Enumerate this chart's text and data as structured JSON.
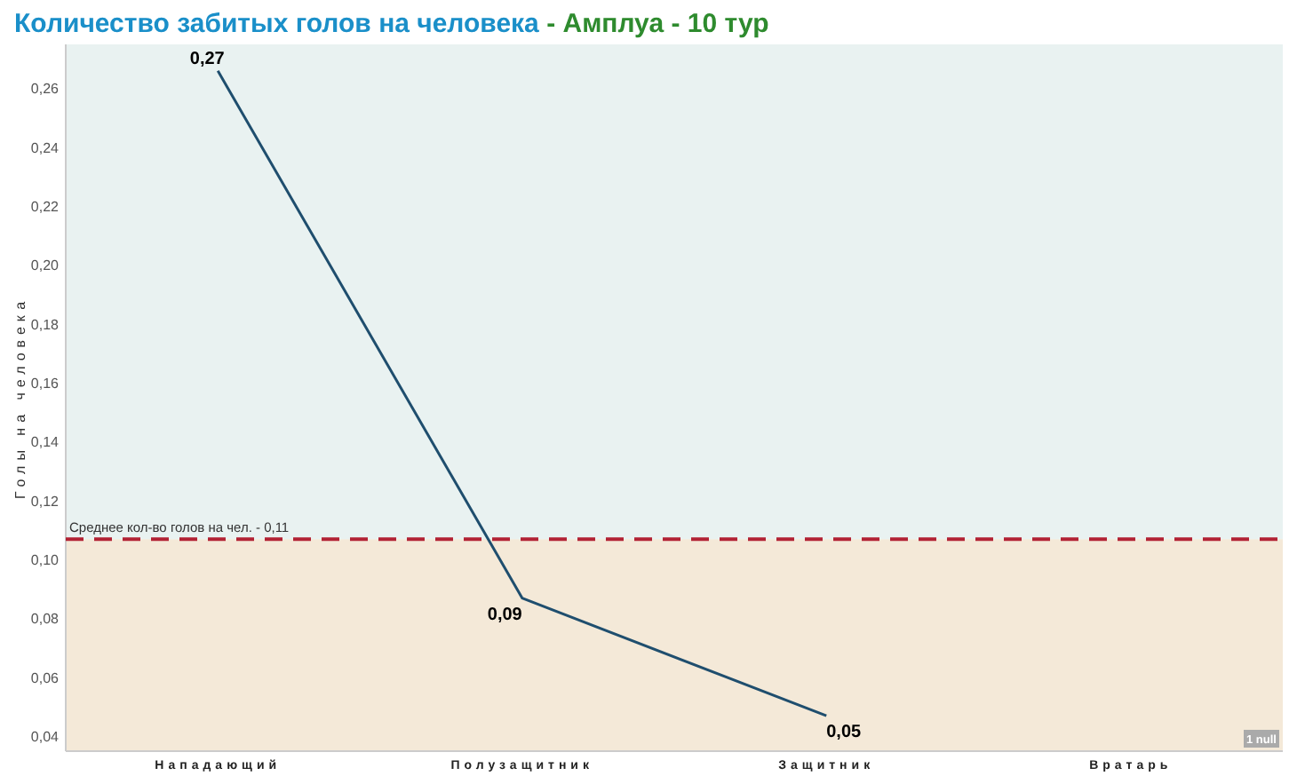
{
  "chart_data": {
    "type": "line",
    "title": "Количество забитых голов на человека - Амплуа - 10 тур",
    "ylabel": "Голы на человека",
    "categories": [
      "Нападающий",
      "Полузащитник",
      "Защитник",
      "Вратарь"
    ],
    "series": [
      {
        "color": "#1f4e6e",
        "values": [
          0.266,
          0.087,
          0.047,
          null
        ],
        "value_labels": [
          "0,27",
          "0,09",
          "0,05",
          null
        ]
      }
    ],
    "ylim": [
      0.035,
      0.275
    ],
    "yticks": [
      {
        "value": 0.04,
        "label": "0,04"
      },
      {
        "value": 0.06,
        "label": "0,06"
      },
      {
        "value": 0.08,
        "label": "0,08"
      },
      {
        "value": 0.1,
        "label": "0,10"
      },
      {
        "value": 0.12,
        "label": "0,12"
      },
      {
        "value": 0.14,
        "label": "0,14"
      },
      {
        "value": 0.16,
        "label": "0,16"
      },
      {
        "value": 0.18,
        "label": "0,18"
      },
      {
        "value": 0.2,
        "label": "0,20"
      },
      {
        "value": 0.22,
        "label": "0,22"
      },
      {
        "value": 0.24,
        "label": "0,24"
      },
      {
        "value": 0.26,
        "label": "0,26"
      }
    ],
    "ref_lines": [
      {
        "axis": "y",
        "value": 0.107,
        "label": "Среднее кол-во голов на чел. - 0,11",
        "color": "#b22234",
        "line_style": "dashed"
      }
    ],
    "bands": [
      {
        "axis": "y",
        "from": 0.035,
        "to": 0.107,
        "color": "#f4e9d8"
      },
      {
        "axis": "y",
        "from": 0.107,
        "to": 0.275,
        "color": "#e9f2f1"
      }
    ],
    "annotations": [
      "1 null"
    ],
    "grid": false,
    "marker": "none",
    "line_style": "solid"
  }
}
